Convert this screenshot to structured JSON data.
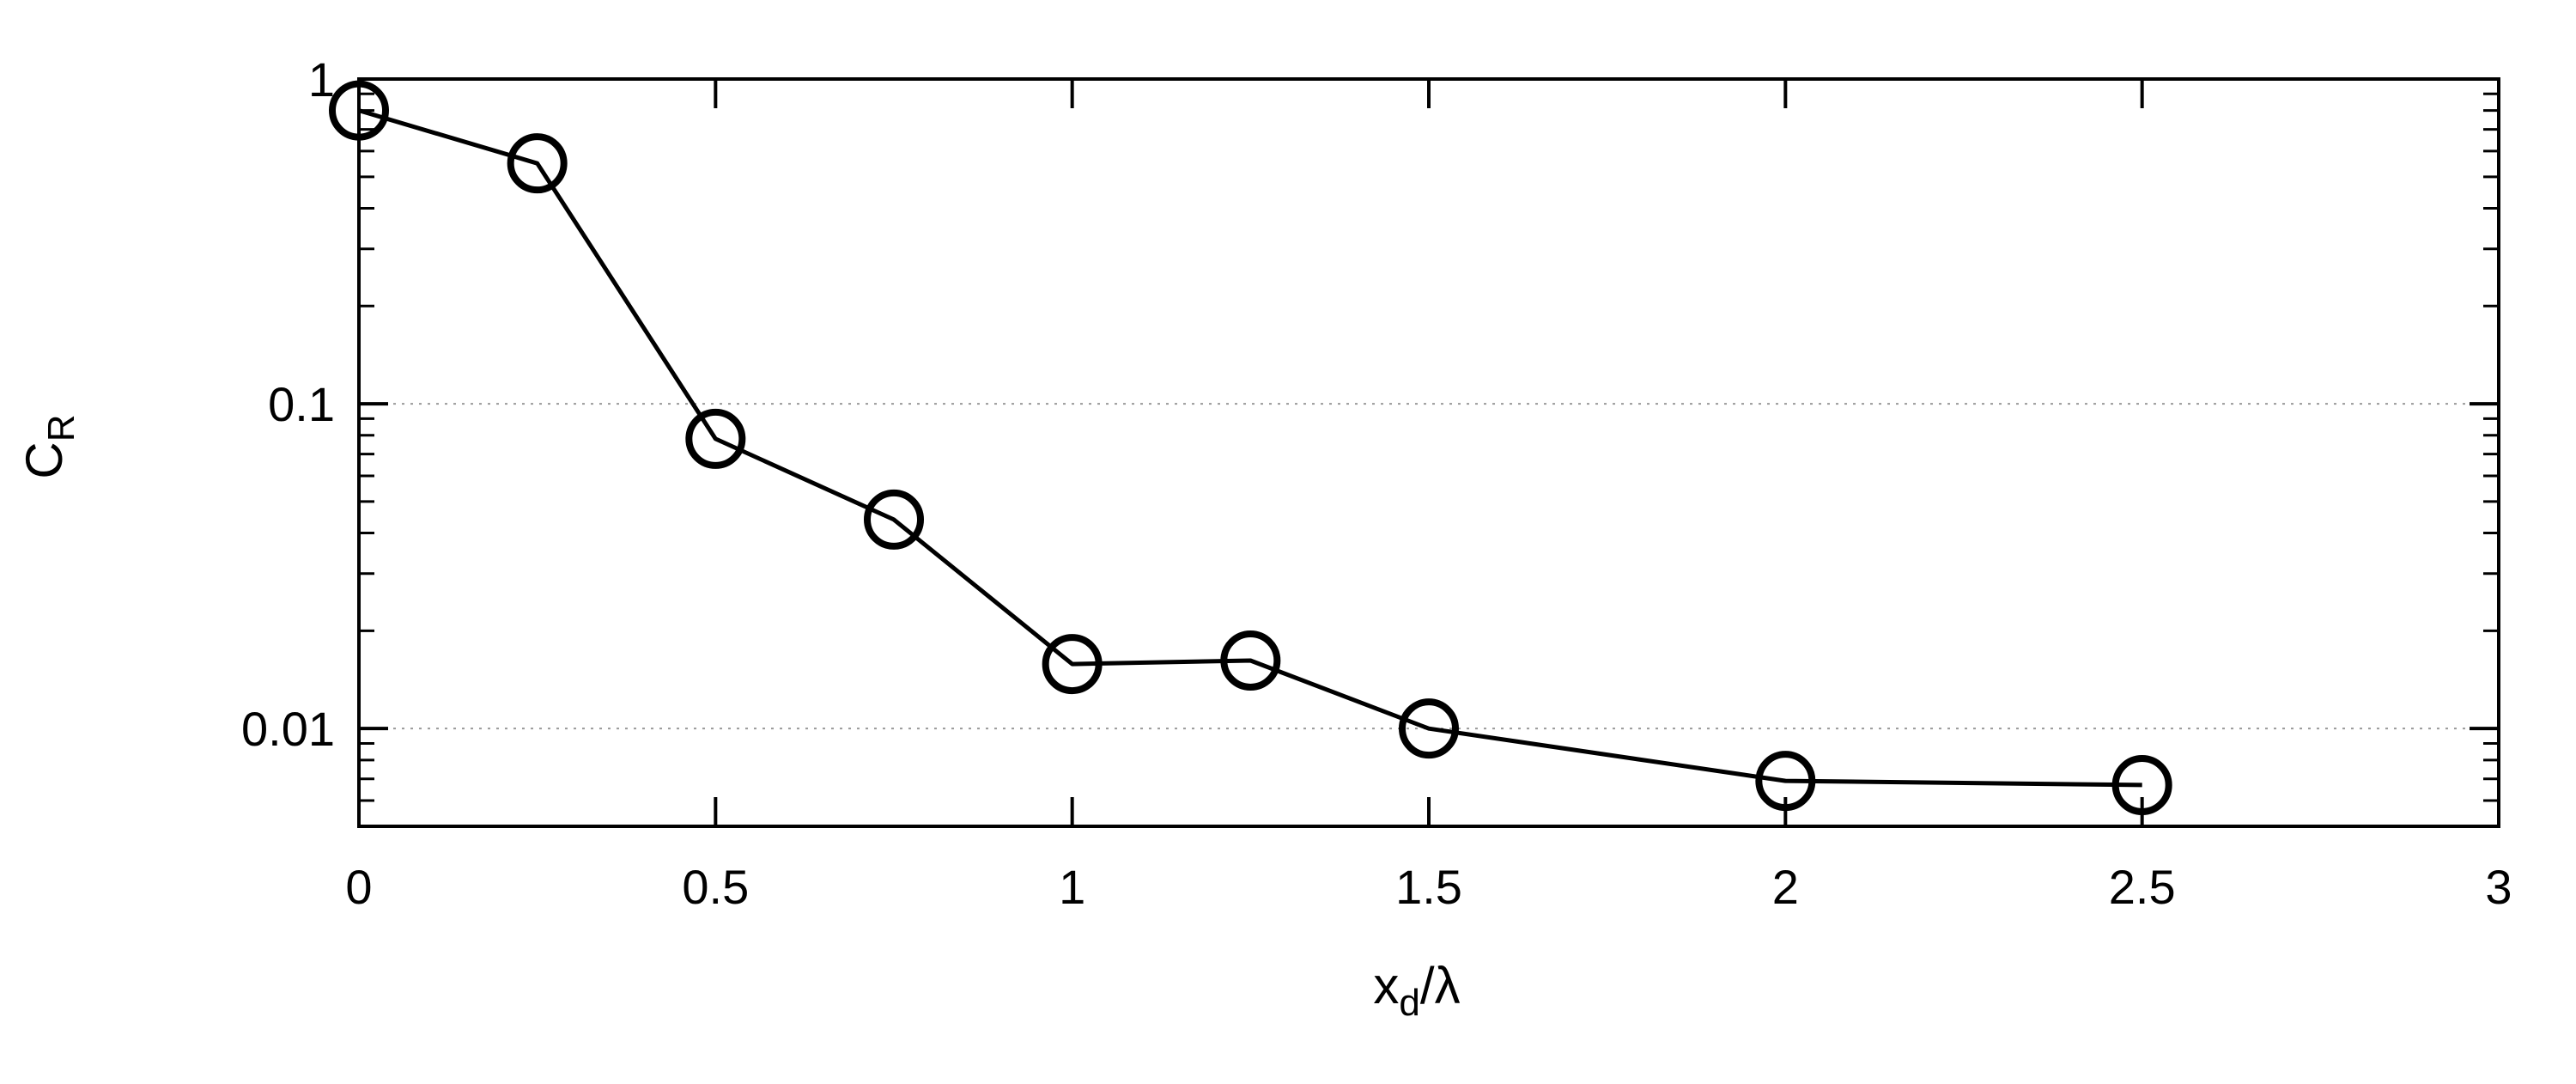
{
  "chart_data": {
    "type": "line",
    "title": "",
    "xlabel": {
      "main": "x",
      "sub": "d",
      "rest": "/λ"
    },
    "ylabel": {
      "main": "C",
      "sub": "R"
    },
    "xlim": [
      0,
      3
    ],
    "ylim": [
      0.005,
      1
    ],
    "yscale": "log",
    "x_ticks": [
      "0",
      "0.5",
      "1",
      "1.5",
      "2",
      "2.5",
      "3"
    ],
    "y_ticks": [
      "0.01",
      "0.1",
      "1"
    ],
    "grid": "horizontal dotted at 0.01 and 0.1",
    "marker": "open-circle",
    "line_color": "#000000",
    "series": [
      {
        "x": [
          0,
          0.25,
          0.5,
          0.75,
          1.0,
          1.25,
          1.5,
          2.0,
          2.5
        ],
        "y": [
          0.8,
          0.55,
          0.078,
          0.044,
          0.0158,
          0.0162,
          0.01,
          0.0069,
          0.0067
        ]
      }
    ]
  }
}
